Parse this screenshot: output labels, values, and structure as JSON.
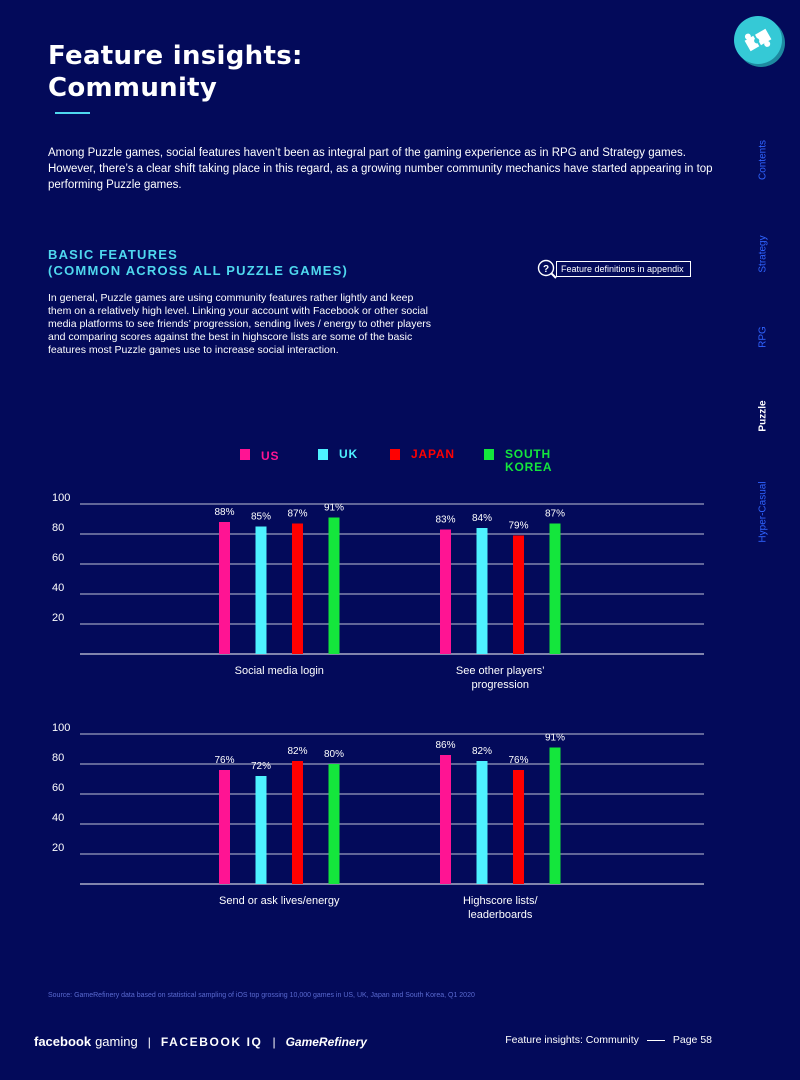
{
  "page": {
    "title_line1": "Feature insights:",
    "title_line2": "Community",
    "intro": "Among Puzzle games, social features haven’t been as integral part of the gaming experience as in RPG and Strategy games. However, there’s a clear shift taking place in this regard, as a growing number community mechanics have started appearing in top performing Puzzle games.",
    "section_heading_line1": "BASIC FEATURES",
    "section_heading_line2": "(COMMON ACROSS ALL PUZZLE GAMES)",
    "section_body": "In general, Puzzle games are using community features rather lightly and keep them on a relatively high level. Linking your account with Facebook or other social media platforms to see friends’ progression, sending lives / energy to other players and comparing scores against the best in highscore lists are some of the basic features most Puzzle games use to increase social interaction.",
    "appendix_label": "Feature definitions in appendix",
    "appendix_icon": "question-magnifier-icon",
    "logo_icon": "puzzle-piece-icon"
  },
  "sidenav": [
    {
      "label": "Contents",
      "active": false
    },
    {
      "label": "Strategy",
      "active": false
    },
    {
      "label": "RPG",
      "active": false
    },
    {
      "label": "Puzzle",
      "active": true
    },
    {
      "label": "Hyper-Casual",
      "active": false
    }
  ],
  "legend": [
    {
      "label": "US",
      "color": "#ff1493"
    },
    {
      "label": "UK",
      "color": "#4ef2ff"
    },
    {
      "label": "JAPAN",
      "color": "#ff0000"
    },
    {
      "label": "SOUTH\nKOREA",
      "color": "#14e63c"
    }
  ],
  "chart_data": [
    {
      "type": "bar",
      "title": "",
      "ylim": [
        0,
        100
      ],
      "yticks": [
        20,
        40,
        60,
        80,
        100
      ],
      "grid": true,
      "categories": [
        "Social media login",
        "See other players’\nprogression"
      ],
      "series": [
        {
          "name": "US",
          "values": [
            88,
            83
          ]
        },
        {
          "name": "UK",
          "values": [
            85,
            84
          ]
        },
        {
          "name": "JAPAN",
          "values": [
            87,
            79
          ]
        },
        {
          "name": "SOUTH KOREA",
          "values": [
            91,
            87
          ]
        }
      ],
      "data_labels": [
        [
          "88%",
          "85%",
          "87%",
          "91%"
        ],
        [
          "83%",
          "84%",
          "79%",
          "87%"
        ]
      ]
    },
    {
      "type": "bar",
      "title": "",
      "ylim": [
        0,
        100
      ],
      "yticks": [
        20,
        40,
        60,
        80,
        100
      ],
      "grid": true,
      "categories": [
        "Send or ask lives/energy",
        "Highscore lists/\nleaderboards"
      ],
      "series": [
        {
          "name": "US",
          "values": [
            76,
            86
          ]
        },
        {
          "name": "UK",
          "values": [
            72,
            82
          ]
        },
        {
          "name": "JAPAN",
          "values": [
            82,
            76
          ]
        },
        {
          "name": "SOUTH KOREA",
          "values": [
            80,
            91
          ]
        }
      ],
      "data_labels": [
        [
          "76%",
          "72%",
          "82%",
          "80%"
        ],
        [
          "86%",
          "82%",
          "76%",
          "91%"
        ]
      ]
    }
  ],
  "footer": {
    "source": "Source: GameRefinery data based on statistical sampling of iOS top grossing 10,000 games in US, UK, Japan and South Korea, Q1 2020",
    "brand_facebook": "facebook",
    "brand_gaming": "gaming",
    "brand_fiq": "FACEBOOK IQ",
    "brand_gr": "GameRefinery",
    "section_label": "Feature insights: Community",
    "page_label": "Page 58"
  }
}
